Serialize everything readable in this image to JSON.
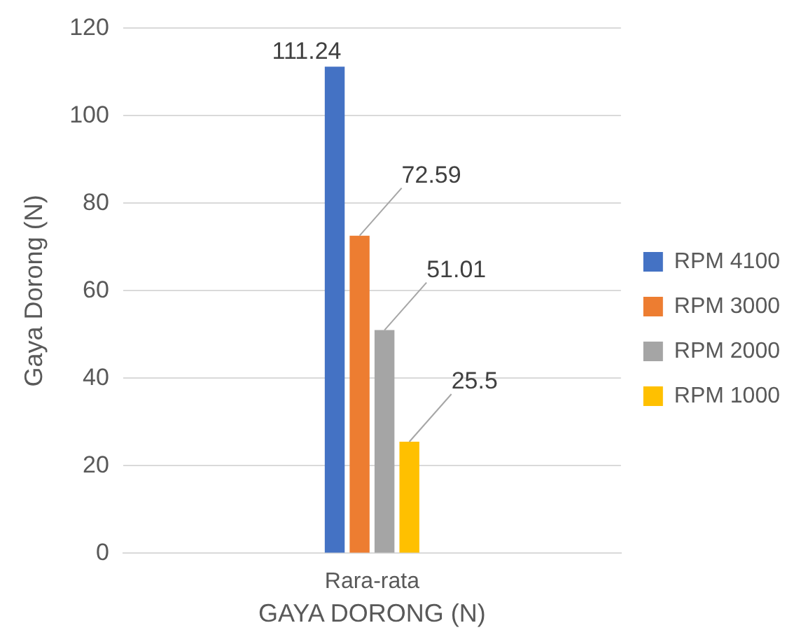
{
  "chart_data": {
    "type": "bar",
    "xlabel": "GAYA DORONG (N)",
    "ylabel": "Gaya Dorong (N)",
    "categories": [
      "Rara-rata"
    ],
    "series": [
      {
        "name": "RPM 4100",
        "color": "#4472c4",
        "values": [
          111.24
        ]
      },
      {
        "name": "RPM 3000",
        "color": "#ed7d31",
        "values": [
          72.59
        ]
      },
      {
        "name": "RPM 2000",
        "color": "#a5a5a5",
        "values": [
          51.01
        ]
      },
      {
        "name": "RPM 1000",
        "color": "#ffc000",
        "values": [
          25.5
        ]
      }
    ],
    "ylim": [
      0,
      120
    ],
    "yticks": [
      0,
      20,
      40,
      60,
      80,
      100,
      120
    ],
    "grid": "y",
    "legend": "right",
    "data_labels": true
  }
}
